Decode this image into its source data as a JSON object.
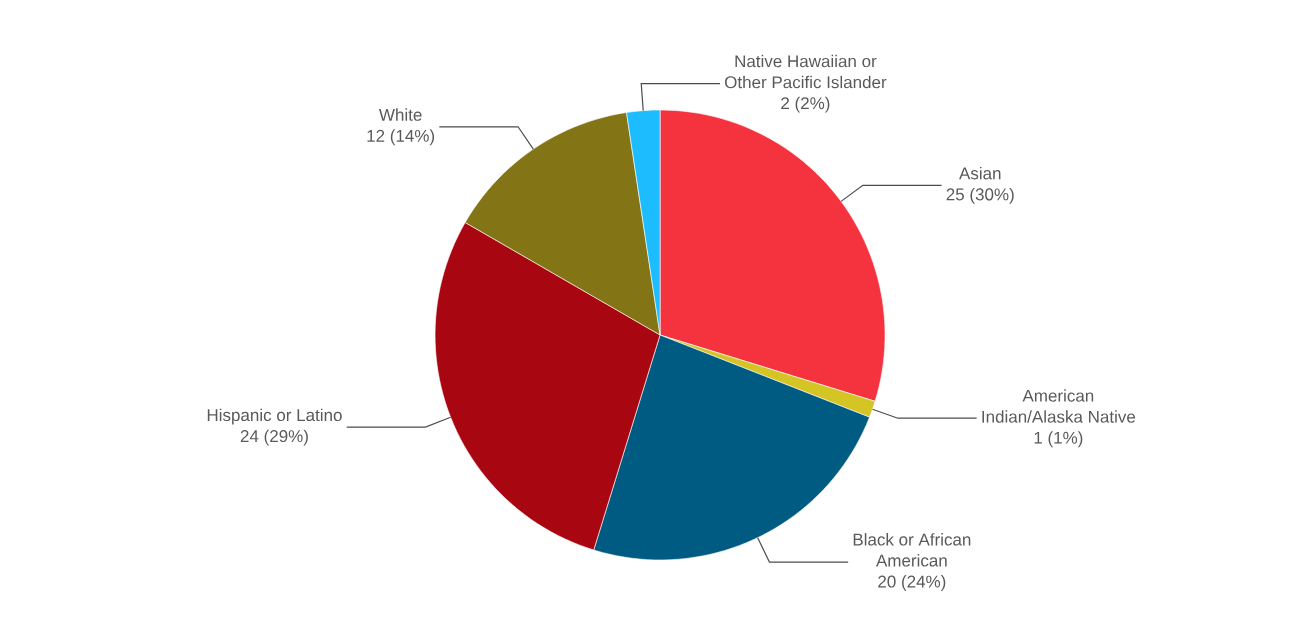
{
  "chart_data": {
    "type": "pie",
    "categories": [
      "Asian",
      "American Indian/Alaska Native",
      "Black or African American",
      "Hispanic or Latino",
      "White",
      "Native Hawaiian or Other Pacific Islander"
    ],
    "values": [
      25,
      1,
      20,
      24,
      12,
      2
    ],
    "value_labels": [
      "25 (30%)",
      "1 (1%)",
      "20 (24%)",
      "24 (29%)",
      "12 (14%)",
      "2 (2%)"
    ],
    "colors": [
      "#f5333f",
      "#d4c525",
      "#005b82",
      "#a80711",
      "#837515",
      "#1cbcff"
    ]
  }
}
